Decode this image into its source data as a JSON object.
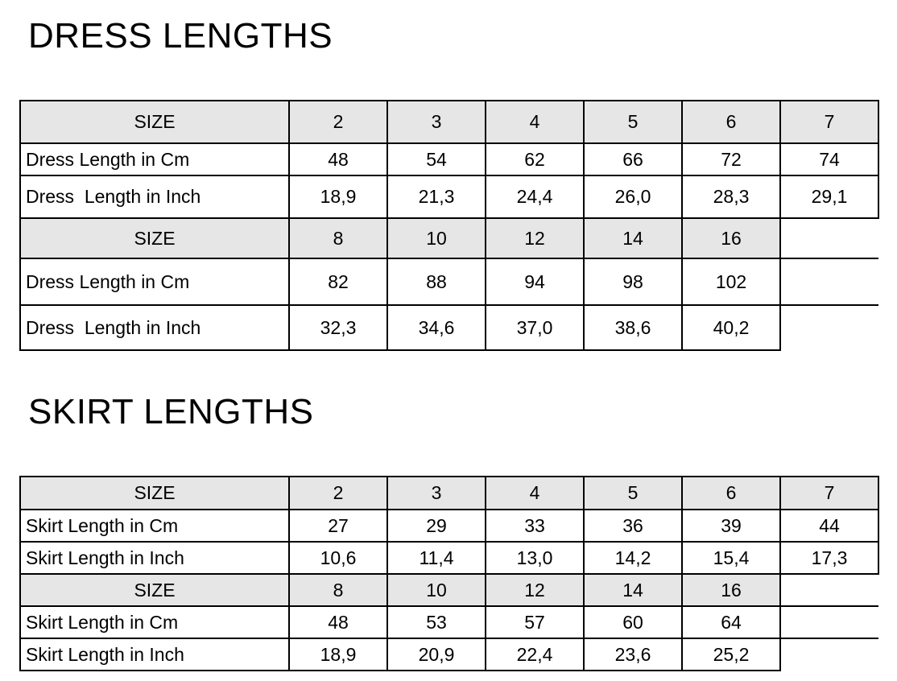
{
  "dress": {
    "title": "DRESS LENGTHS",
    "blocks": [
      {
        "size_label": "SIZE",
        "sizes": [
          "2",
          "3",
          "4",
          "5",
          "6",
          "7"
        ],
        "rows": [
          {
            "label": "Dress Length in Cm",
            "values": [
              "48",
              "54",
              "62",
              "66",
              "72",
              "74"
            ]
          },
          {
            "label": "Dress  Length in Inch",
            "values": [
              "18,9",
              "21,3",
              "24,4",
              "26,0",
              "28,3",
              "29,1"
            ]
          }
        ]
      },
      {
        "size_label": "SIZE",
        "sizes": [
          "8",
          "10",
          "12",
          "14",
          "16"
        ],
        "rows": [
          {
            "label": "Dress Length in Cm",
            "values": [
              "82",
              "88",
              "94",
              "98",
              "102"
            ]
          },
          {
            "label": "Dress  Length in Inch",
            "values": [
              "32,3",
              "34,6",
              "37,0",
              "38,6",
              "40,2"
            ]
          }
        ]
      }
    ]
  },
  "skirt": {
    "title": "SKIRT LENGTHS",
    "blocks": [
      {
        "size_label": "SIZE",
        "sizes": [
          "2",
          "3",
          "4",
          "5",
          "6",
          "7"
        ],
        "rows": [
          {
            "label": "Skirt Length in Cm",
            "values": [
              "27",
              "29",
              "33",
              "36",
              "39",
              "44"
            ]
          },
          {
            "label": "Skirt Length in Inch",
            "values": [
              "10,6",
              "11,4",
              "13,0",
              "14,2",
              "15,4",
              "17,3"
            ]
          }
        ]
      },
      {
        "size_label": "SIZE",
        "sizes": [
          "8",
          "10",
          "12",
          "14",
          "16"
        ],
        "rows": [
          {
            "label": "Skirt Length in Cm",
            "values": [
              "48",
              "53",
              "57",
              "60",
              "64"
            ]
          },
          {
            "label": "Skirt Length in Inch",
            "values": [
              "18,9",
              "20,9",
              "22,4",
              "23,6",
              "25,2"
            ]
          }
        ]
      }
    ]
  }
}
